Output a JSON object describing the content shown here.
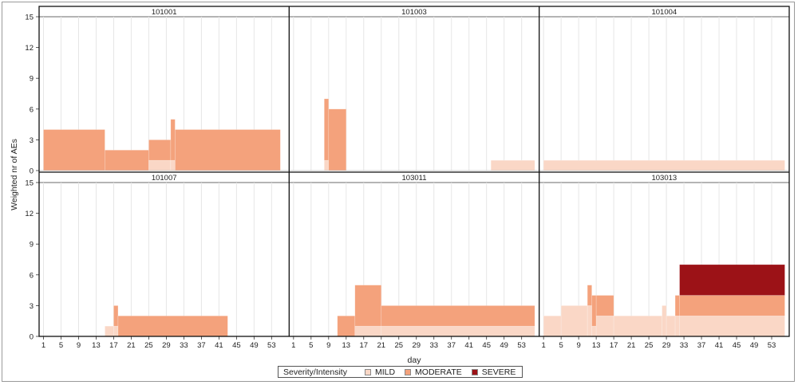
{
  "chart_data": {
    "type": "area",
    "ylabel": "Weighted nr of AEs",
    "xlabel": "day",
    "ylim": [
      0,
      15
    ],
    "yticks": [
      0,
      3,
      6,
      9,
      12,
      15
    ],
    "xlim": [
      0,
      57
    ],
    "xticks": [
      1,
      5,
      9,
      13,
      17,
      21,
      25,
      29,
      33,
      37,
      41,
      45,
      49,
      53
    ],
    "grid": "vertical",
    "stacked": true,
    "legend": {
      "title": "Severity/Intensity",
      "position": "bottom",
      "items": [
        "MILD",
        "MODERATE",
        "SEVERE"
      ]
    },
    "colors": {
      "MILD": "#fad7c6",
      "MODERATE": "#f4a27c",
      "SEVERE": "#9c1217"
    },
    "panels": [
      {
        "title": "101001",
        "segments": [
          {
            "start": 1,
            "end": 15,
            "MILD": 0,
            "MODERATE": 4,
            "SEVERE": 0
          },
          {
            "start": 15,
            "end": 25,
            "MILD": 0,
            "MODERATE": 2,
            "SEVERE": 0
          },
          {
            "start": 25,
            "end": 30,
            "MILD": 1,
            "MODERATE": 2,
            "SEVERE": 0
          },
          {
            "start": 30,
            "end": 31,
            "MILD": 1,
            "MODERATE": 4,
            "SEVERE": 0
          },
          {
            "start": 31,
            "end": 55,
            "MILD": 0,
            "MODERATE": 4,
            "SEVERE": 0
          }
        ]
      },
      {
        "title": "101003",
        "segments": [
          {
            "start": 8,
            "end": 9,
            "MILD": 1,
            "MODERATE": 6,
            "SEVERE": 0
          },
          {
            "start": 9,
            "end": 13,
            "MILD": 0,
            "MODERATE": 6,
            "SEVERE": 0
          },
          {
            "start": 46,
            "end": 56,
            "MILD": 1,
            "MODERATE": 0,
            "SEVERE": 0
          }
        ]
      },
      {
        "title": "101004",
        "segments": [
          {
            "start": 1,
            "end": 56,
            "MILD": 1,
            "MODERATE": 0,
            "SEVERE": 0
          }
        ]
      },
      {
        "title": "101007",
        "segments": [
          {
            "start": 15,
            "end": 17,
            "MILD": 1,
            "MODERATE": 0,
            "SEVERE": 0
          },
          {
            "start": 17,
            "end": 18,
            "MILD": 1,
            "MODERATE": 2,
            "SEVERE": 0
          },
          {
            "start": 18,
            "end": 43,
            "MILD": 0,
            "MODERATE": 2,
            "SEVERE": 0
          }
        ]
      },
      {
        "title": "103011",
        "segments": [
          {
            "start": 11,
            "end": 15,
            "MILD": 0,
            "MODERATE": 2,
            "SEVERE": 0
          },
          {
            "start": 15,
            "end": 21,
            "MILD": 1,
            "MODERATE": 4,
            "SEVERE": 0
          },
          {
            "start": 21,
            "end": 56,
            "MILD": 1,
            "MODERATE": 2,
            "SEVERE": 0
          }
        ]
      },
      {
        "title": "103013",
        "segments": [
          {
            "start": 1,
            "end": 5,
            "MILD": 2,
            "MODERATE": 0,
            "SEVERE": 0
          },
          {
            "start": 5,
            "end": 11,
            "MILD": 3,
            "MODERATE": 0,
            "SEVERE": 0
          },
          {
            "start": 11,
            "end": 12,
            "MILD": 3,
            "MODERATE": 2,
            "SEVERE": 0
          },
          {
            "start": 12,
            "end": 13,
            "MILD": 1,
            "MODERATE": 3,
            "SEVERE": 0
          },
          {
            "start": 13,
            "end": 17,
            "MILD": 2,
            "MODERATE": 2,
            "SEVERE": 0
          },
          {
            "start": 17,
            "end": 28,
            "MILD": 2,
            "MODERATE": 0,
            "SEVERE": 0
          },
          {
            "start": 28,
            "end": 29,
            "MILD": 3,
            "MODERATE": 0,
            "SEVERE": 0
          },
          {
            "start": 29,
            "end": 31,
            "MILD": 2,
            "MODERATE": 0,
            "SEVERE": 0
          },
          {
            "start": 31,
            "end": 32,
            "MILD": 2,
            "MODERATE": 2,
            "SEVERE": 0
          },
          {
            "start": 32,
            "end": 56,
            "MILD": 2,
            "MODERATE": 2,
            "SEVERE": 3
          }
        ]
      }
    ]
  }
}
